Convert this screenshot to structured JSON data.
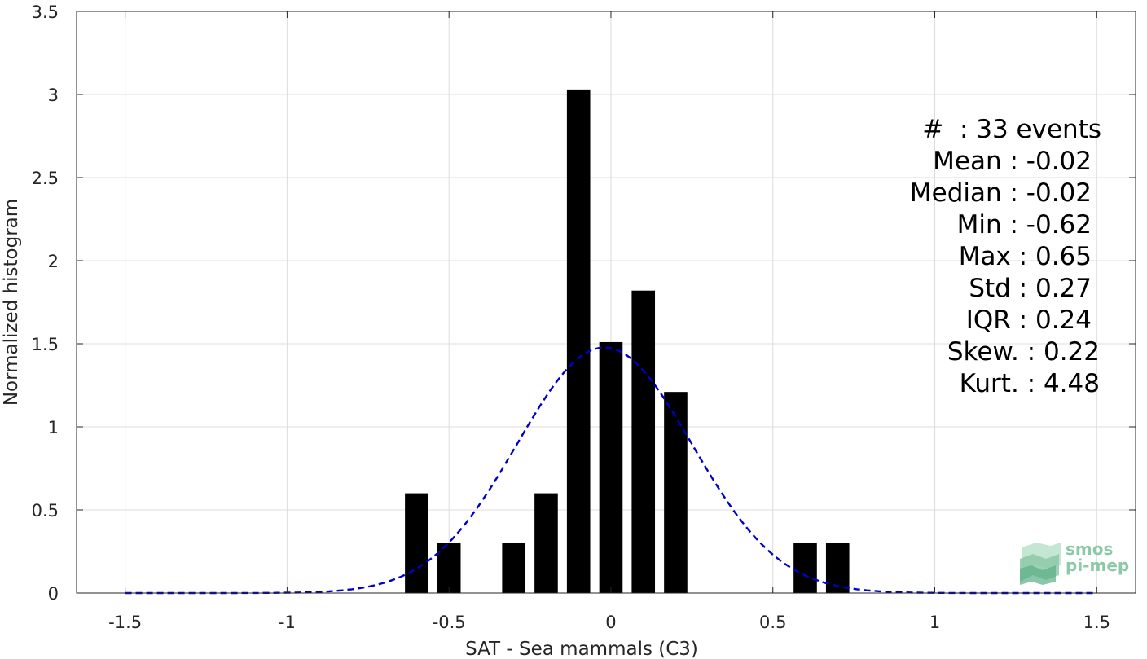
{
  "chart_data": {
    "type": "bar",
    "xlabel": "SAT - Sea mammals (C3)",
    "ylabel": "Normalized histogram",
    "xlim": [
      -1.65,
      1.62
    ],
    "ylim": [
      0,
      3.5
    ],
    "xticks": [
      -1.5,
      -1,
      -0.5,
      0,
      0.5,
      1,
      1.5
    ],
    "xtick_labels": [
      "-1.5",
      "-1",
      "-0.5",
      "0",
      "0.5",
      "1",
      "1.5"
    ],
    "yticks": [
      0,
      0.5,
      1,
      1.5,
      2,
      2.5,
      3,
      3.5
    ],
    "ytick_labels": [
      "0",
      "0.5",
      "1",
      "1.5",
      "2",
      "2.5",
      "3",
      "3.5"
    ],
    "grid": true,
    "bin_width": 0.1,
    "bar_fill": "#000000",
    "bars": [
      {
        "x": -0.6,
        "value": 0.6
      },
      {
        "x": -0.5,
        "value": 0.3
      },
      {
        "x": -0.3,
        "value": 0.3
      },
      {
        "x": -0.2,
        "value": 0.6
      },
      {
        "x": -0.1,
        "value": 3.03
      },
      {
        "x": 0.0,
        "value": 1.51
      },
      {
        "x": 0.1,
        "value": 1.82
      },
      {
        "x": 0.2,
        "value": 1.21
      },
      {
        "x": 0.6,
        "value": 0.3
      },
      {
        "x": 0.7,
        "value": 0.3
      }
    ],
    "fit_curve": {
      "type": "normal",
      "style": "dashed",
      "color": "#0000cc",
      "mean": -0.02,
      "std": 0.27,
      "x_range": [
        -1.5,
        1.5
      ]
    }
  },
  "stats": {
    "events": "#  : 33 events",
    "mean": "Mean : -0.02",
    "median": "Median : -0.02",
    "min": "Min : -0.62",
    "max": "Max : 0.65",
    "std": "Std : 0.27",
    "iqr": "IQR : 0.24",
    "skew": "Skew. : 0.22",
    "kurt": "Kurt. : 4.48"
  },
  "logo": {
    "line1": "smos",
    "line2": "pi-mep",
    "color": "#8cc9a8"
  }
}
